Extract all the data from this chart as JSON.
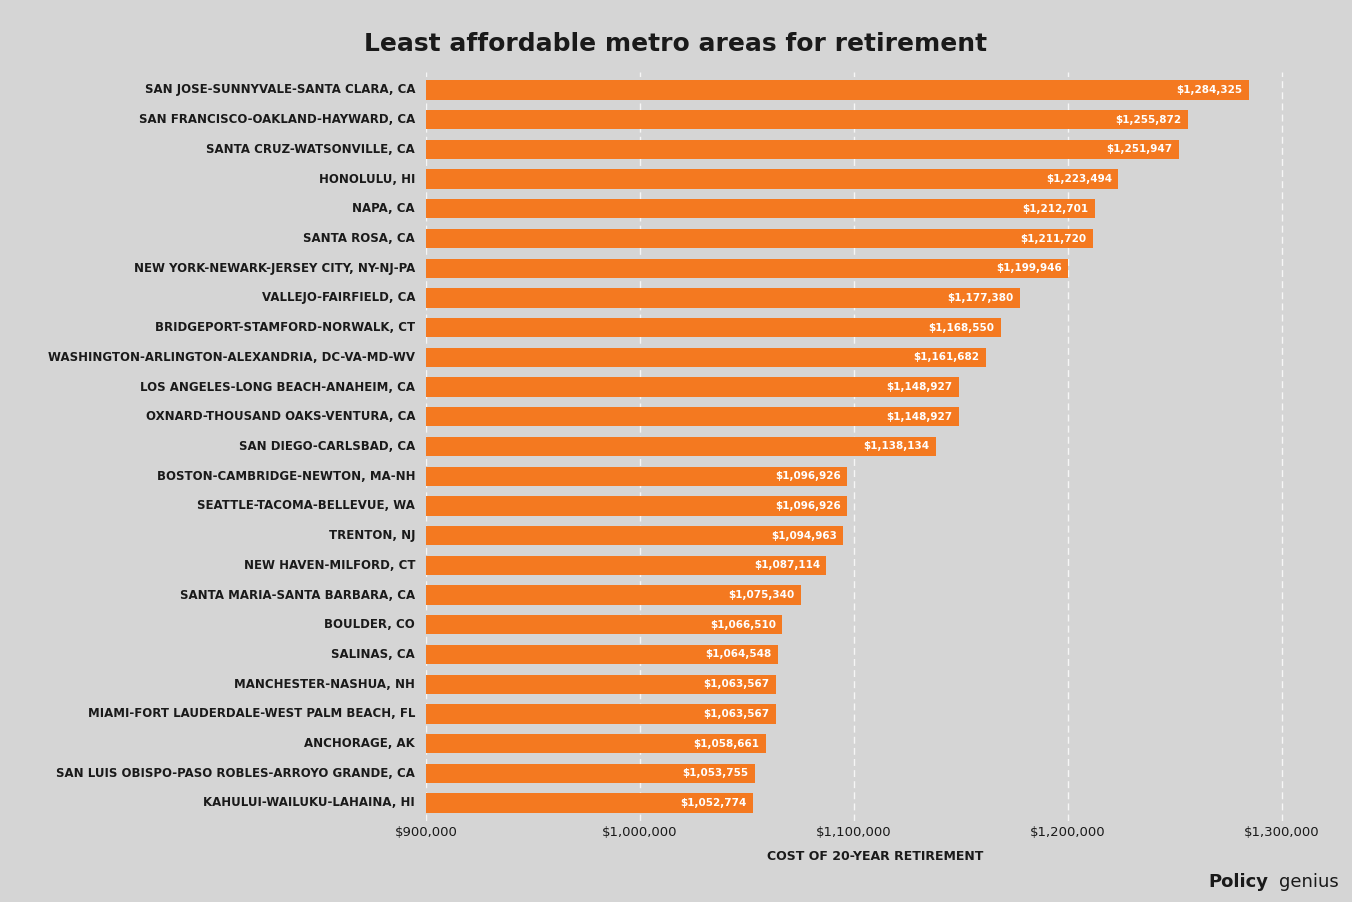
{
  "title": "Least affordable metro areas for retirement",
  "xlabel": "COST OF 20-YEAR RETIREMENT",
  "categories": [
    "SAN JOSE-SUNNYVALE-SANTA CLARA, CA",
    "SAN FRANCISCO-OAKLAND-HAYWARD, CA",
    "SANTA CRUZ-WATSONVILLE, CA",
    "HONOLULU, HI",
    "NAPA, CA",
    "SANTA ROSA, CA",
    "NEW YORK-NEWARK-JERSEY CITY, NY-NJ-PA",
    "VALLEJO-FAIRFIELD, CA",
    "BRIDGEPORT-STAMFORD-NORWALK, CT",
    "WASHINGTON-ARLINGTON-ALEXANDRIA, DC-VA-MD-WV",
    "LOS ANGELES-LONG BEACH-ANAHEIM, CA",
    "OXNARD-THOUSAND OAKS-VENTURA, CA",
    "SAN DIEGO-CARLSBAD, CA",
    "BOSTON-CAMBRIDGE-NEWTON, MA-NH",
    "SEATTLE-TACOMA-BELLEVUE, WA",
    "TRENTON, NJ",
    "NEW HAVEN-MILFORD, CT",
    "SANTA MARIA-SANTA BARBARA, CA",
    "BOULDER, CO",
    "SALINAS, CA",
    "MANCHESTER-NASHUA, NH",
    "MIAMI-FORT LAUDERDALE-WEST PALM BEACH, FL",
    "ANCHORAGE, AK",
    "SAN LUIS OBISPO-PASO ROBLES-ARROYO GRANDE, CA",
    "KAHULUI-WAILUKU-LAHAINA, HI"
  ],
  "values": [
    1284325,
    1255872,
    1251947,
    1223494,
    1212701,
    1211720,
    1199946,
    1177380,
    1168550,
    1161682,
    1148927,
    1148927,
    1138134,
    1096926,
    1096926,
    1094963,
    1087114,
    1075340,
    1066510,
    1064548,
    1063567,
    1063567,
    1058661,
    1053755,
    1052774
  ],
  "bar_color": "#F47920",
  "label_color": "#FFFFFF",
  "bg_left": "#D8D8D8",
  "bg_right": "#C0C0C0",
  "title_color": "#1A1A1A",
  "tick_label_color": "#1A1A1A",
  "xlim_min": 900000,
  "xlim_max": 1320000,
  "xticks": [
    900000,
    1000000,
    1100000,
    1200000,
    1300000
  ],
  "xtick_labels": [
    "$900,000",
    "$1,000,000",
    "$1,100,000",
    "$1,200,000",
    "$1,300,000"
  ],
  "gridline_color": "#FFFFFF",
  "bar_height": 0.65,
  "label_fontsize": 7.5,
  "ytick_fontsize": 8.5,
  "xtick_fontsize": 9.5,
  "title_fontsize": 18,
  "xlabel_fontsize": 9
}
